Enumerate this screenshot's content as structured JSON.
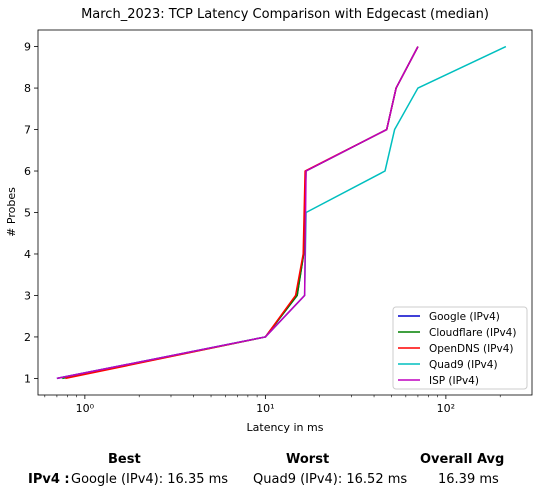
{
  "chart_data": {
    "type": "line",
    "title": "March_2023: TCP Latency Comparison with Edgecast (median)",
    "xlabel": "Latency in ms",
    "ylabel": "# Probes",
    "xscale": "log",
    "xlim": [
      0.55,
      300
    ],
    "ylim": [
      0.6,
      9.4
    ],
    "x_ticks": [
      {
        "value": 1,
        "label": "10⁰"
      },
      {
        "value": 10,
        "label": "10¹"
      },
      {
        "value": 100,
        "label": "10²"
      }
    ],
    "y_ticks": [
      1,
      2,
      3,
      4,
      5,
      6,
      7,
      8,
      9
    ],
    "grid": false,
    "legend_position": "lower-right",
    "series": [
      {
        "name": "Google (IPv4)",
        "color": "#0000cc",
        "x": [
          0.7,
          10,
          15,
          16.3,
          16.7,
          47,
          53,
          70
        ],
        "y": [
          1,
          2,
          3,
          4,
          6,
          7,
          8,
          9
        ]
      },
      {
        "name": "Cloudflare (IPv4)",
        "color": "#008000",
        "x": [
          0.75,
          10,
          15,
          16.3,
          16.8,
          47,
          53,
          70
        ],
        "y": [
          1,
          2,
          3,
          4,
          6,
          7,
          8,
          9
        ]
      },
      {
        "name": "OpenDNS (IPv4)",
        "color": "#ff0000",
        "x": [
          0.78,
          10,
          14.7,
          16.2,
          16.6,
          47,
          53,
          70
        ],
        "y": [
          1,
          2,
          3,
          4,
          6,
          7,
          8,
          9
        ]
      },
      {
        "name": "Quad9 (IPv4)",
        "color": "#00bfbf",
        "x": [
          0.7,
          10,
          16.5,
          16.8,
          46,
          52,
          70,
          215
        ],
        "y": [
          1,
          2,
          3,
          5,
          6,
          7,
          8,
          9
        ]
      },
      {
        "name": "ISP (IPv4)",
        "color": "#bf00bf",
        "x": [
          0.7,
          10,
          16.5,
          16.8,
          47,
          53,
          70
        ],
        "y": [
          1,
          2,
          3,
          6,
          7,
          8,
          9
        ]
      }
    ]
  },
  "summary": {
    "best_label": "Best",
    "worst_label": "Worst",
    "avg_label": "Overall Avg",
    "row_label": "IPv4 :",
    "best_value": "Google (IPv4): 16.35 ms",
    "worst_value": "Quad9 (IPv4): 16.52 ms",
    "avg_value": "16.39 ms"
  }
}
